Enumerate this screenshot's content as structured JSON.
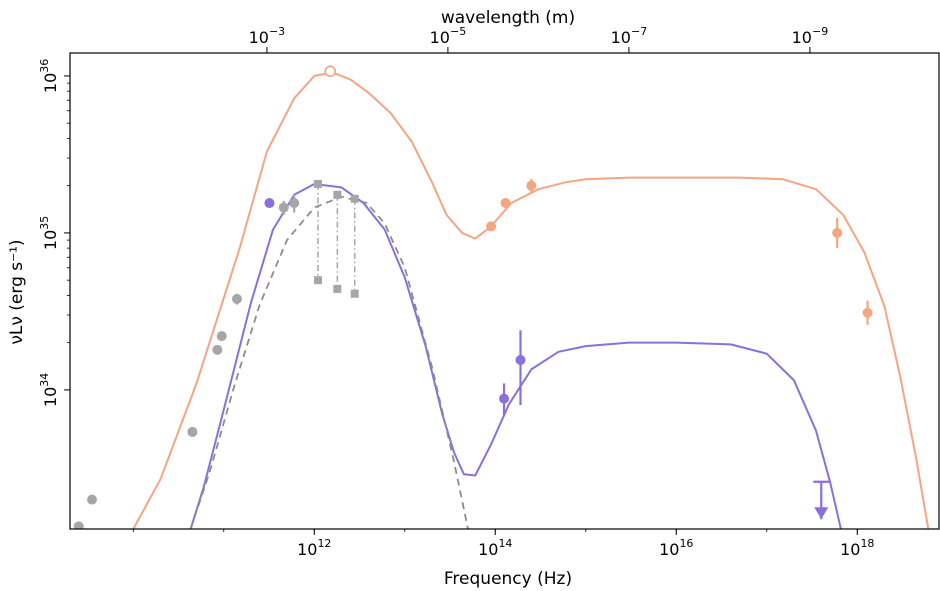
{
  "chart_data": {
    "type": "scatter",
    "title": "",
    "xlabel": "Frequency (Hz)",
    "ylabel": "νLν (erg s⁻¹)",
    "top_xlabel": "wavelength (m)",
    "x_scale": "log",
    "y_scale": "log",
    "xlim": [
      2000000000.0,
      8e+18
    ],
    "ylim": [
      1.3e+33,
      1.4e+36
    ],
    "grid": false,
    "legend": "none",
    "x_ticks": [
      {
        "value": 1000000000000.0,
        "base": "10",
        "exp": "12"
      },
      {
        "value": 100000000000000.0,
        "base": "10",
        "exp": "14"
      },
      {
        "value": 1e+16,
        "base": "10",
        "exp": "16"
      },
      {
        "value": 1e+18,
        "base": "10",
        "exp": "18"
      }
    ],
    "y_ticks": [
      {
        "value": 1e+34,
        "base": "10",
        "exp": "34"
      },
      {
        "value": 1e+35,
        "base": "10",
        "exp": "35"
      },
      {
        "value": 1e+36,
        "base": "10",
        "exp": "36"
      }
    ],
    "top_ticks": [
      {
        "wavelength": 0.001,
        "base": "10",
        "exp": "−3"
      },
      {
        "wavelength": 1e-05,
        "base": "10",
        "exp": "−5"
      },
      {
        "wavelength": 1e-07,
        "base": "10",
        "exp": "−7"
      },
      {
        "wavelength": 1e-09,
        "base": "10",
        "exp": "−9"
      }
    ],
    "colors": {
      "salmon": "#f4a582",
      "purple": "#8b6fdc",
      "gray": "#a6a6a6",
      "gray_dash": "#8c8c8c"
    },
    "series": [
      {
        "color": "salmon",
        "style": "line",
        "x": [
          10000000000.0,
          20000000000.0,
          50000000000.0,
          150000000000.0,
          300000000000.0,
          600000000000.0,
          1000000000000.0,
          1600000000000.0,
          2500000000000.0,
          4000000000000.0,
          7000000000000.0,
          12000000000000.0,
          20000000000000.0,
          29000000000000.0,
          43000000000000.0,
          60000000000000.0,
          90000000000000.0,
          150000000000000.0,
          300000000000000.0,
          600000000000000.0,
          1000000000000000.0,
          3000000000000000.0,
          1e+16,
          5e+16,
          1.5e+17,
          3.5e+17,
          7e+17,
          1.2e+18,
          2e+18,
          3e+18,
          4.5e+18,
          6.1e+18
        ],
        "y": [
          1.3e+33,
          2.7e+33,
          1.1e+34,
          8e+34,
          3.3e+35,
          7.2e+35,
          1e+36,
          1.05e+36,
          9.5e+35,
          7.8e+35,
          5.8e+35,
          3.8e+35,
          2.1e+35,
          1.3e+35,
          1e+35,
          9.2e+34,
          1.1e+35,
          1.55e+35,
          1.9e+35,
          2.1e+35,
          2.2e+35,
          2.25e+35,
          2.25e+35,
          2.25e+35,
          2.2e+35,
          1.9e+35,
          1.3e+35,
          7.5e+34,
          3.4e+34,
          1.2e+34,
          3.6e+33,
          1.3e+33
        ]
      },
      {
        "color": "purple",
        "style": "line",
        "x": [
          43000000000.0,
          60000000000.0,
          100000000000.0,
          200000000000.0,
          350000000000.0,
          600000000000.0,
          1000000000000.0,
          2000000000000.0,
          3500000000000.0,
          6000000000000.0,
          10000000000000.0,
          17000000000000.0,
          26000000000000.0,
          35000000000000.0,
          45000000000000.0,
          60000000000000.0,
          90000000000000.0,
          140000000000000.0,
          250000000000000.0,
          500000000000000.0,
          1000000000000000.0,
          3000000000000000.0,
          1e+16,
          4e+16,
          1e+17,
          2e+17,
          3.5e+17,
          5e+17,
          6.6e+17
        ],
        "y": [
          1.3e+33,
          2.4e+33,
          7.5e+33,
          3.6e+34,
          1.05e+35,
          1.75e+35,
          2.05e+35,
          1.95e+35,
          1.55e+35,
          1.05e+35,
          5.2e+34,
          1.9e+34,
          7e+33,
          4e+33,
          2.9e+33,
          2.85e+33,
          4.5e+33,
          8e+33,
          1.35e+34,
          1.75e+34,
          1.9e+34,
          2e+34,
          2e+34,
          1.95e+34,
          1.7e+34,
          1.15e+34,
          5.5e+33,
          2.6e+33,
          1.3e+33
        ]
      },
      {
        "color": "gray_dash",
        "style": "dashed",
        "x": [
          43000000000.0,
          70000000000.0,
          130000000000.0,
          250000000000.0,
          500000000000.0,
          1000000000000.0,
          2000000000000.0,
          3800000000000.0,
          6000000000000.0,
          10000000000000.0,
          20000000000000.0,
          35000000000000.0,
          50000000000000.0
        ],
        "y": [
          1.3e+33,
          3e+33,
          1.05e+34,
          3.5e+34,
          9e+34,
          1.45e+35,
          1.7e+35,
          1.55e+35,
          1.15e+35,
          6e+34,
          1.4e+34,
          3.5e+33,
          1.3e+33
        ]
      },
      {
        "color": "salmon",
        "style": "points",
        "x": [
          250000000000000.0,
          130000000000000.0,
          90000000000000.0,
          6e+17,
          1.3e+18
        ],
        "y": [
          2e+35,
          1.55e+35,
          1.1e+35,
          1e+35,
          3.1e+34
        ],
        "yerr_low": [
          1.8e+35,
          null,
          null,
          8e+34,
          2.6e+34
        ],
        "yerr_high": [
          2.2e+35,
          null,
          null,
          1.25e+35,
          3.7e+34
        ]
      },
      {
        "color": "salmon",
        "style": "open_point",
        "x": [
          1500000000000.0
        ],
        "y": [
          1.07e+36
        ]
      },
      {
        "color": "purple",
        "style": "points",
        "x": [
          320000000000.0,
          125000000000000.0,
          190000000000000.0
        ],
        "y": [
          1.55e+35,
          8.8e+33,
          1.55e+34
        ],
        "yerr_low": [
          null,
          6.8e+33,
          8e+33
        ],
        "yerr_high": [
          null,
          1.1e+34,
          2.4e+34
        ]
      },
      {
        "color": "purple",
        "style": "upper_limit",
        "x": [
          4e+17
        ],
        "y": [
          2.6e+33
        ],
        "y_low": [
          1.5e+33
        ]
      },
      {
        "color": "gray",
        "style": "points",
        "x": [
          2500000000.0,
          3500000000.0,
          45000000000.0,
          85000000000.0,
          95000000000.0,
          140000000000.0,
          460000000000.0,
          600000000000.0
        ],
        "y": [
          1.35e+33,
          2e+33,
          5.4e+33,
          1.8e+34,
          2.2e+34,
          3.8e+34,
          1.45e+35,
          1.55e+35
        ],
        "yerr_low": [
          null,
          null,
          5.1e+33,
          null,
          null,
          3.5e+34,
          1.3e+35,
          1.35e+35
        ],
        "yerr_high": [
          null,
          null,
          5.8e+33,
          null,
          null,
          4.1e+34,
          1.6e+35,
          1.75e+35
        ]
      },
      {
        "color": "gray",
        "style": "upper_limit_lines",
        "x": [
          1100000000000.0,
          1800000000000.0,
          2800000000000.0
        ],
        "y_top": [
          2.05e+35,
          1.75e+35,
          1.65e+35
        ],
        "y_bottom": [
          5e+34,
          4.4e+34,
          4.1e+34
        ]
      }
    ]
  }
}
